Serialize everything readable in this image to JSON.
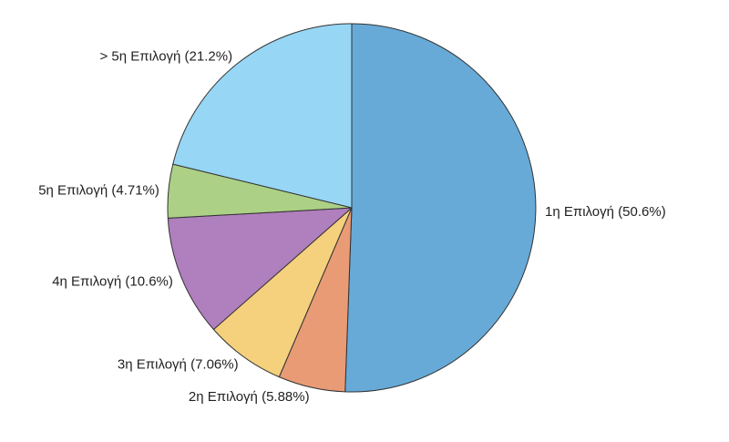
{
  "chart_data": {
    "type": "pie",
    "title": "",
    "start": "top",
    "direction": "clockwise",
    "slices": [
      {
        "label": "1η Επιλογή (50.6%)",
        "value": 50.6,
        "color": "#67aad8"
      },
      {
        "label": "2η Επιλογή (5.88%)",
        "value": 5.88,
        "color": "#e99b76"
      },
      {
        "label": "3η Επιλογή (7.06%)",
        "value": 7.06,
        "color": "#f5d07d"
      },
      {
        "label": "4η Επιλογή (10.6%)",
        "value": 10.6,
        "color": "#b07fbd"
      },
      {
        "label": "5η Επιλογή (4.71%)",
        "value": 4.71,
        "color": "#acd086"
      },
      {
        "label": "> 5η Επιλογή (21.2%)",
        "value": 21.2,
        "color": "#97d6f4"
      }
    ]
  }
}
